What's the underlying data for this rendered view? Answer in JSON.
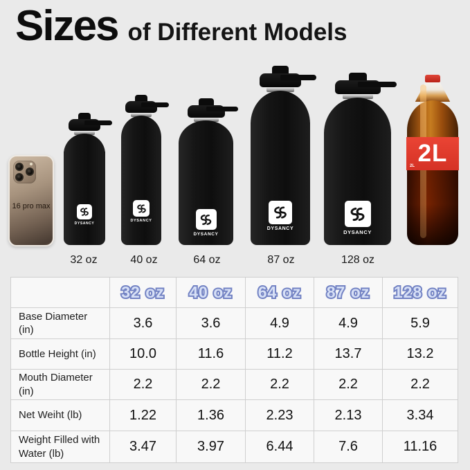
{
  "title": {
    "main": "Sizes",
    "rest": "of Different Models"
  },
  "brand": "DYSANCY",
  "phone": {
    "label": "16 pro max"
  },
  "cola": {
    "label": "2L",
    "small_label": "2L"
  },
  "scene_labels": [
    "32 oz",
    "40 oz",
    "64 oz",
    "87 oz",
    "128 oz"
  ],
  "table": {
    "corner": "",
    "col_headers": [
      "32 oz",
      "40 oz",
      "64 oz",
      "87 oz",
      "128 oz"
    ],
    "rows": [
      {
        "label": "Base Diameter (in)",
        "values": [
          "3.6",
          "3.6",
          "4.9",
          "4.9",
          "5.9"
        ]
      },
      {
        "label": "Bottle Height (in)",
        "values": [
          "10.0",
          "11.6",
          "11.2",
          "13.7",
          "13.2"
        ]
      },
      {
        "label": "Mouth Diameter (in)",
        "values": [
          "2.2",
          "2.2",
          "2.2",
          "2.2",
          "2.2"
        ]
      },
      {
        "label": "Net Weiht (lb)",
        "values": [
          "1.22",
          "1.36",
          "2.23",
          "2.13",
          "3.34"
        ]
      },
      {
        "label": "Weight Filled with Water (lb)",
        "values": [
          "3.47",
          "3.97",
          "6.44",
          "7.6",
          "11.16"
        ]
      }
    ]
  },
  "chart_data": {
    "type": "table",
    "title": "Sizes of Different Models",
    "columns": [
      "32 oz",
      "40 oz",
      "64 oz",
      "87 oz",
      "128 oz"
    ],
    "rows": [
      {
        "label": "Base Diameter (in)",
        "values": [
          3.6,
          3.6,
          4.9,
          4.9,
          5.9
        ]
      },
      {
        "label": "Bottle Height (in)",
        "values": [
          10.0,
          11.6,
          11.2,
          13.7,
          13.2
        ]
      },
      {
        "label": "Mouth Diameter (in)",
        "values": [
          2.2,
          2.2,
          2.2,
          2.2,
          2.2
        ]
      },
      {
        "label": "Net Weiht (lb)",
        "values": [
          1.22,
          1.36,
          2.23,
          2.13,
          3.34
        ]
      },
      {
        "label": "Weight Filled with Water (lb)",
        "values": [
          3.47,
          3.97,
          6.44,
          7.6,
          11.16
        ]
      }
    ]
  },
  "colors": {
    "background": "#eaeaea",
    "header_fill": "#d7e0f6",
    "header_outline": "#7282c3",
    "table_border": "#cfcfcf",
    "cell_bg": "#f8f8f8",
    "bottle_black": "#141414",
    "cola_red": "#e03a2b",
    "cola_amber": "#a4540f",
    "phone_bronze": "#a7937e"
  }
}
